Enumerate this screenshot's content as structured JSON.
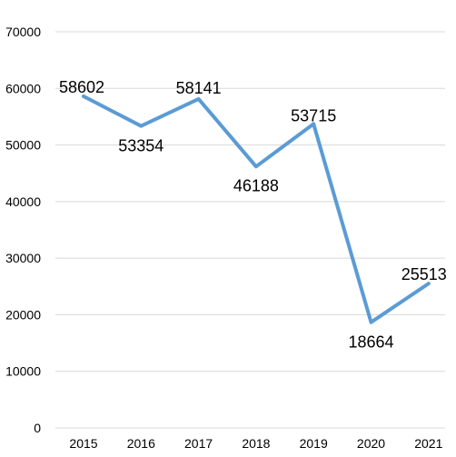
{
  "chart_data": {
    "type": "line",
    "title": "",
    "xlabel": "",
    "ylabel": "",
    "categories": [
      "2015",
      "2016",
      "2017",
      "2018",
      "2019",
      "2020",
      "2021"
    ],
    "series": [
      {
        "values": [
          58602,
          53354,
          58141,
          46188,
          53715,
          18664,
          25513
        ]
      }
    ],
    "data_labels": [
      "58602",
      "53354",
      "58141",
      "46188",
      "53715",
      "18664",
      "25513"
    ],
    "y_ticks": [
      "0",
      "10000",
      "20000",
      "30000",
      "40000",
      "50000",
      "60000",
      "70000"
    ],
    "ylim": [
      0,
      70000
    ],
    "grid": "horizontal",
    "legend": "none",
    "line_color": "#5b9bd5",
    "grid_color": "#d9d9d9"
  }
}
